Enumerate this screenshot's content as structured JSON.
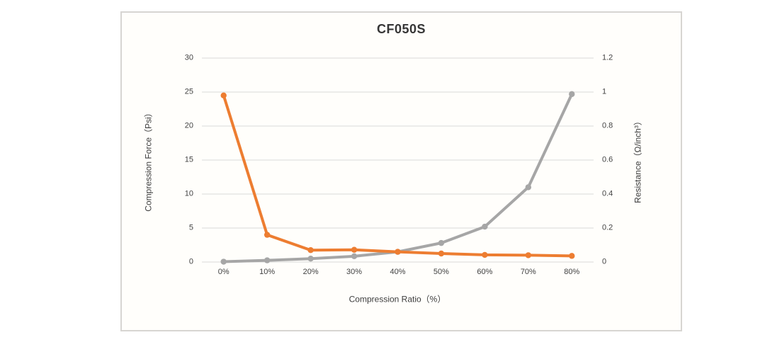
{
  "chart_data": {
    "type": "line",
    "title": "CF050S",
    "categories": [
      "0%",
      "10%",
      "20%",
      "30%",
      "40%",
      "50%",
      "60%",
      "70%",
      "80%"
    ],
    "series": [
      {
        "name": "Compression Force",
        "axis": "left",
        "color": "#a6a6a6",
        "values": [
          0.05,
          0.25,
          0.5,
          0.85,
          1.5,
          2.8,
          5.2,
          11,
          24.7
        ]
      },
      {
        "name": "Resistance",
        "axis": "right",
        "color": "#ed7d31",
        "values": [
          0.98,
          0.16,
          0.07,
          0.072,
          0.06,
          0.05,
          0.042,
          0.04,
          0.036
        ]
      }
    ],
    "x_title": "Compression Ratio（%）",
    "y_left": {
      "title": "Compression Force（Psi）",
      "min": 0,
      "max": 30,
      "ticks": [
        "0",
        "5",
        "10",
        "15",
        "20",
        "25",
        "30"
      ]
    },
    "y_right": {
      "title": "Resistance（Ω/inch³）",
      "min": 0,
      "max": 1.2,
      "ticks": [
        "0",
        "0.2",
        "0.4",
        "0.6",
        "0.8",
        "1",
        "1.2"
      ]
    },
    "grid": true,
    "gridline_color": "#d9d9d9",
    "legend": "none"
  }
}
